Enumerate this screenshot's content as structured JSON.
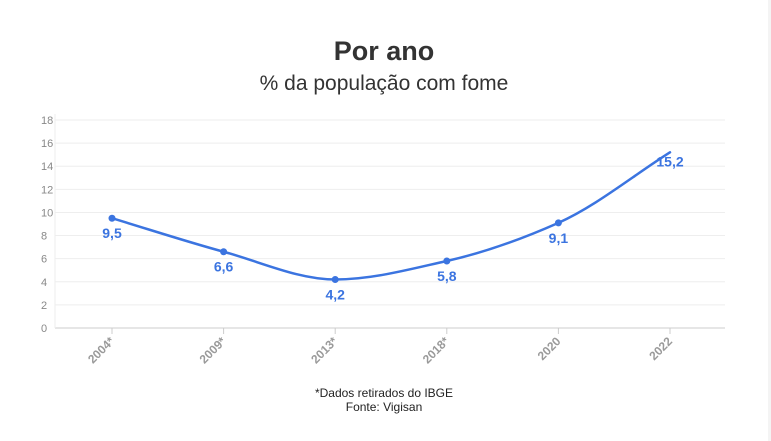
{
  "title": "Por ano",
  "subtitle": "% da população com fome",
  "footnote_lines": [
    "*Dados retirados do IBGE",
    "Fonte: Vigisan"
  ],
  "colors": {
    "line": "#3b74e0",
    "grid": "#eeeeee",
    "axis": "#cccccc"
  },
  "chart_data": {
    "type": "line",
    "title": "Por ano",
    "subtitle": "% da população com fome",
    "categories": [
      "2004*",
      "2009*",
      "2013*",
      "2018*",
      "2020",
      "2022"
    ],
    "series": [
      {
        "values": [
          9.5,
          6.6,
          4.2,
          5.8,
          9.1,
          15.2
        ],
        "labels": [
          "9,5",
          "6,6",
          "4,2",
          "5,8",
          "9,1",
          "15,2"
        ]
      }
    ],
    "ylim": [
      0,
      18
    ],
    "yticks": [
      0,
      2,
      4,
      6,
      8,
      10,
      12,
      14,
      16,
      18
    ],
    "grid": true,
    "xlabel": "",
    "ylabel": ""
  }
}
